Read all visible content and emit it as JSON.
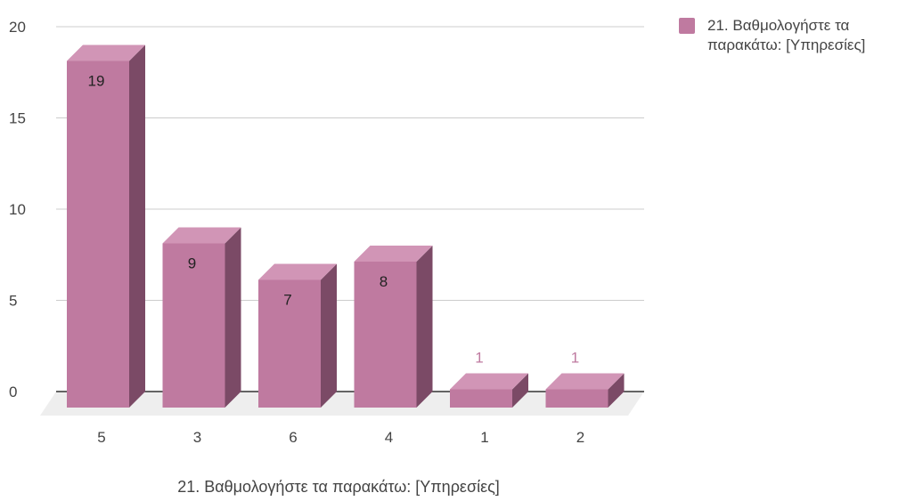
{
  "chart_data": {
    "type": "bar",
    "categories": [
      "5",
      "3",
      "6",
      "4",
      "1",
      "2"
    ],
    "series": [
      {
        "name": "21. Βαθμολογήστε τα παρακάτω: [Υπηρεσίες]",
        "values": [
          19,
          9,
          7,
          8,
          1,
          1
        ],
        "data_labels": [
          "19",
          "9",
          "7",
          "8",
          "1",
          "1"
        ]
      }
    ],
    "xlabel": "21. Βαθμολογήστε τα παρακάτω: [Υπηρεσίες]",
    "ylabel": "",
    "ylim": [
      0,
      20
    ],
    "yticks": [
      "0",
      "5",
      "10",
      "15",
      "20"
    ],
    "grid": true,
    "legend_position": "right",
    "style": "3d-bar",
    "colors": {
      "bar_front": "#bf7aa0",
      "bar_top": "#d195b6",
      "bar_side": "#7b4a66",
      "label_inside": "#222222",
      "label_outside": "#bf7aa0",
      "grid": "#cccccc",
      "floor": "#eeeeee"
    }
  }
}
